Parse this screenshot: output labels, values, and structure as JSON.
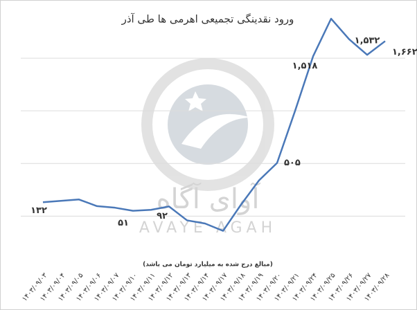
{
  "chart_data": {
    "type": "line",
    "title": "ورود نقدینگی تجمیعی اهرمی ها طی آذر",
    "note": "(مبالغ درج شده به میلیارد تومان می باشد)",
    "watermark_text": "آوای آگاه",
    "watermark_subtext": "AVAYE AGAH",
    "categories": [
      "۱۴۰۳/۰۹/۰۳",
      "۱۴۰۳/۰۹/۰۴",
      "۱۴۰۳/۰۹/۰۵",
      "۱۴۰۳/۰۹/۰۶",
      "۱۴۰۳/۰۹/۰۷",
      "۱۴۰۳/۰۹/۱۰",
      "۱۴۰۳/۰۹/۱۱",
      "۱۴۰۳/۰۹/۱۲",
      "۱۴۰۳/۰۹/۱۳",
      "۱۴۰۳/۰۹/۱۴",
      "۱۴۰۳/۰۹/۱۷",
      "۱۴۰۳/۰۹/۱۸",
      "۱۴۰۳/۰۹/۱۹",
      "۱۴۰۳/۰۹/۲۰",
      "۱۴۰۳/۰۹/۲۱",
      "۱۴۰۳/۰۹/۲۴",
      "۱۴۰۳/۰۹/۲۵",
      "۱۴۰۳/۰۹/۲۶",
      "۱۴۰۳/۰۹/۲۷",
      "۱۴۰۳/۰۹/۲۸"
    ],
    "values": [
      132,
      145,
      158,
      95,
      80,
      51,
      60,
      92,
      -40,
      -70,
      -140,
      110,
      340,
      505,
      1000,
      1518,
      1875,
      1680,
      1532,
      1662
    ],
    "value_labels": [
      "۱۳۲",
      null,
      null,
      null,
      null,
      "۵۱",
      null,
      "۹۲",
      null,
      null,
      null,
      null,
      null,
      "۵۰۵",
      null,
      "۱,۵۱۸",
      null,
      null,
      "۱,۵۳۲",
      "۱,۶۶۲"
    ],
    "color": "#4a78b8",
    "ylim": [
      -300,
      2000
    ],
    "yticks": [
      0,
      500,
      1000,
      1500
    ],
    "grid": true
  }
}
